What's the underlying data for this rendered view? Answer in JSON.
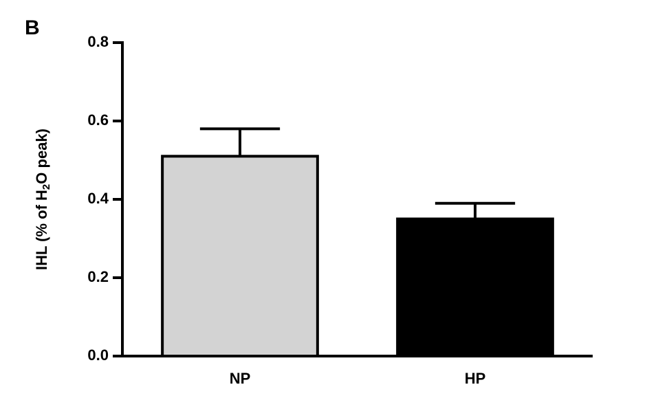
{
  "chart_data": {
    "type": "bar",
    "panel_label": "B",
    "ylabel": [
      "IHL (% of H",
      "2",
      "O peak)"
    ],
    "categories": [
      "NP",
      "HP"
    ],
    "values": [
      0.51,
      0.35
    ],
    "errors": [
      0.07,
      0.04
    ],
    "colors": [
      "#d3d3d3",
      "#000000"
    ],
    "ylim": [
      0,
      0.8
    ],
    "yticks": [
      {
        "value": 0,
        "label": "0.0"
      },
      0.2,
      0.4,
      0.6,
      0.8
    ]
  }
}
